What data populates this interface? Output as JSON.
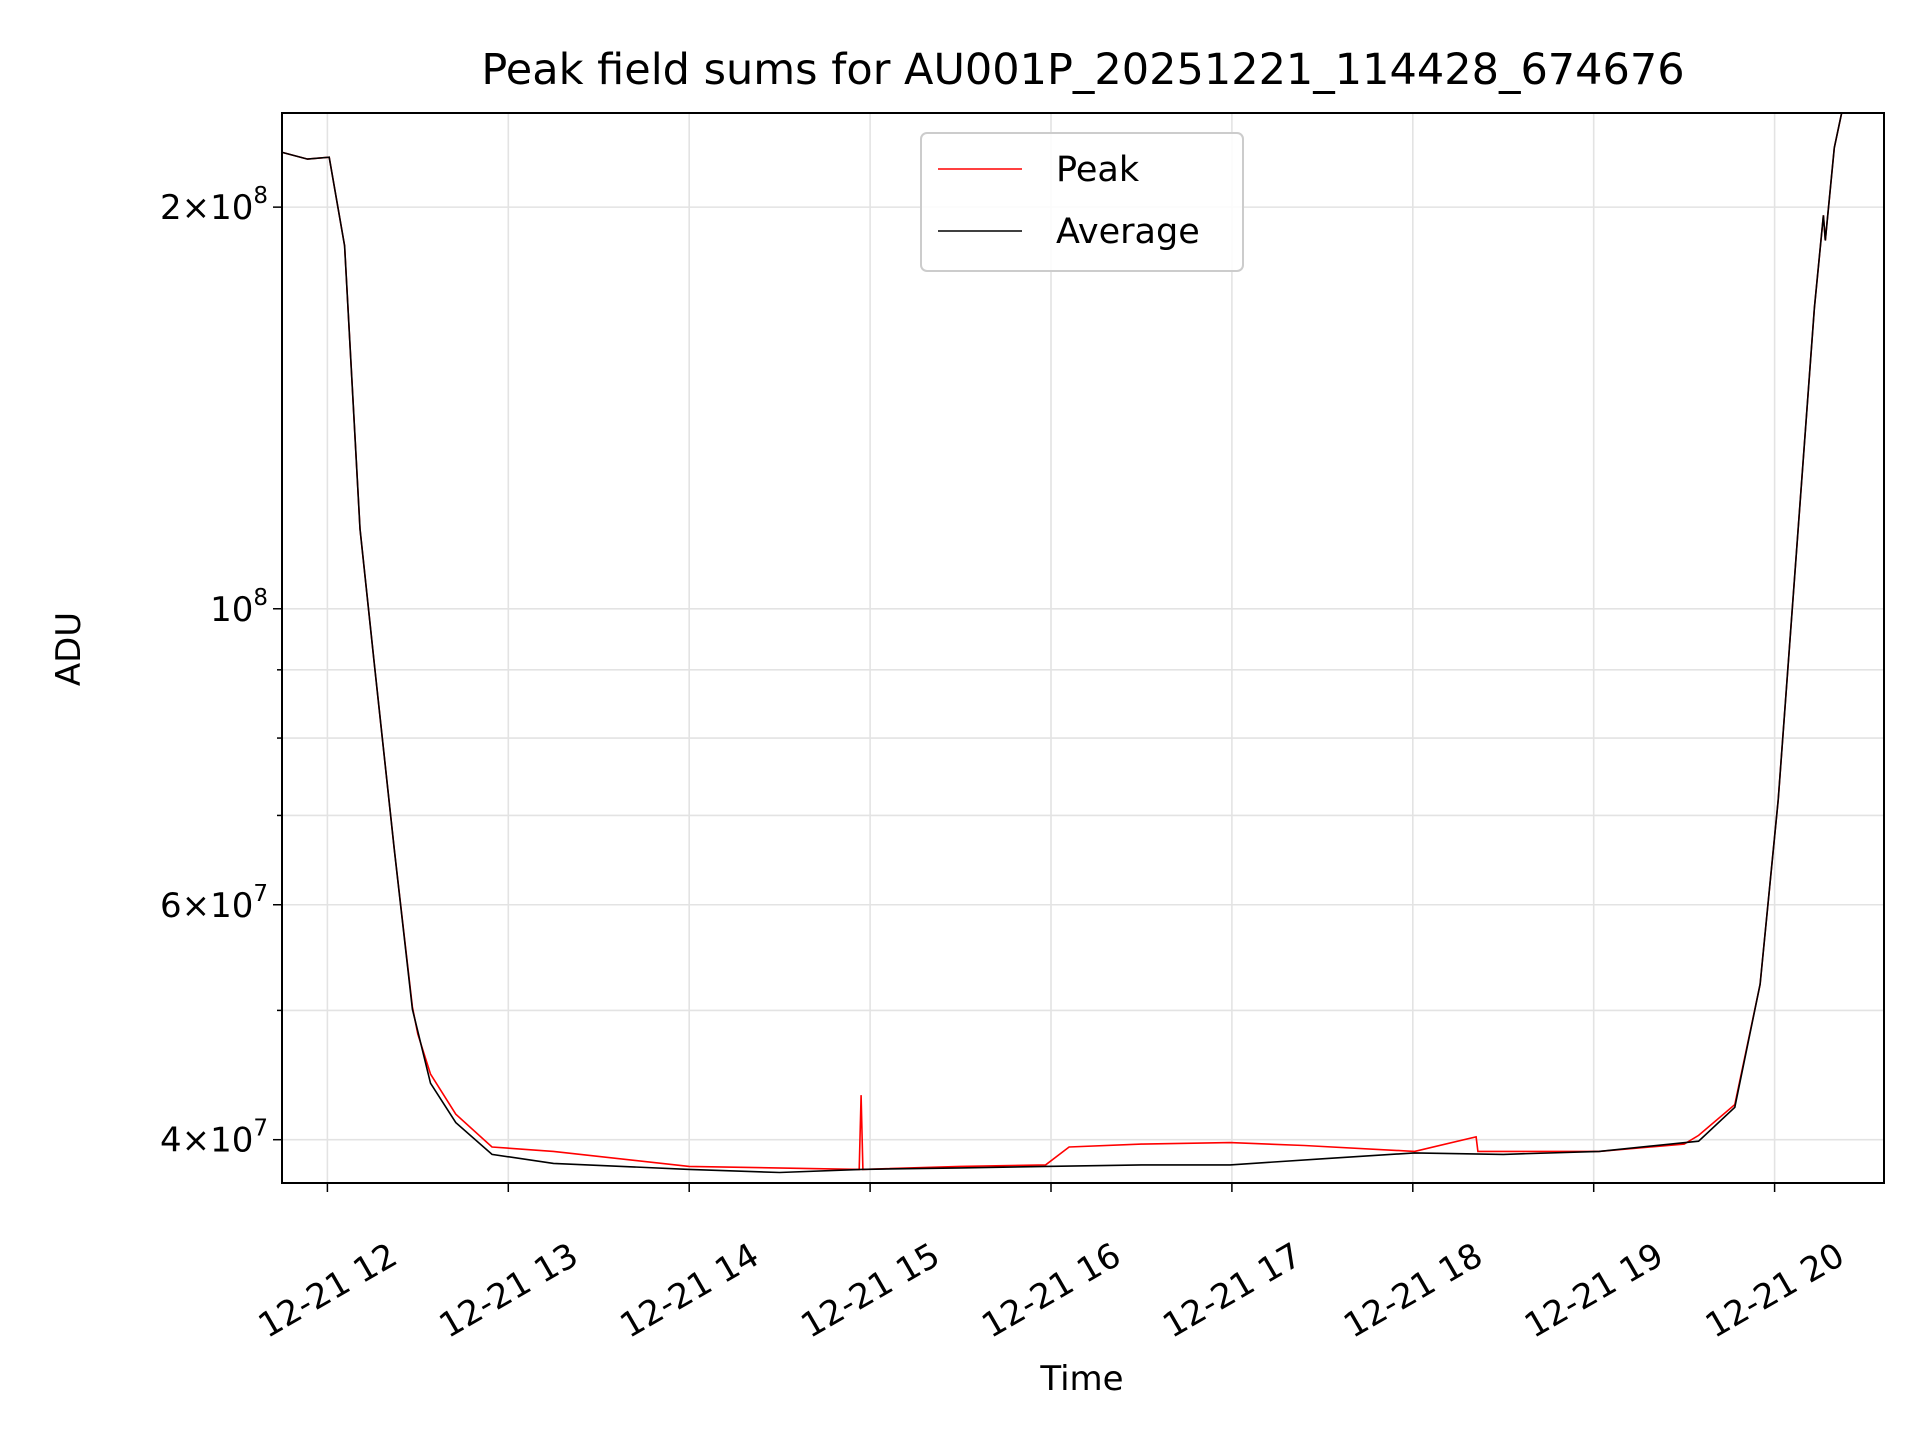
{
  "chart_data": {
    "type": "line",
    "title": "Peak field sums for AU001P_20251221_114428_674676",
    "xlabel": "Time",
    "ylabel": "ADU",
    "yscale": "log",
    "xlim_hours": [
      11.75,
      20.6
    ],
    "ylim": [
      37100000,
      235000000
    ],
    "grid": true,
    "legend_position": "upper center",
    "x_ticks": [
      {
        "h": 12,
        "label": "12-21 12"
      },
      {
        "h": 13,
        "label": "12-21 13"
      },
      {
        "h": 14,
        "label": "12-21 14"
      },
      {
        "h": 15,
        "label": "12-21 15"
      },
      {
        "h": 16,
        "label": "12-21 16"
      },
      {
        "h": 17,
        "label": "12-21 17"
      },
      {
        "h": 18,
        "label": "12-21 18"
      },
      {
        "h": 19,
        "label": "12-21 19"
      },
      {
        "h": 20,
        "label": "12-21 20"
      }
    ],
    "y_ticks": [
      {
        "v": 200000000,
        "mant": "2×10",
        "exp": "8"
      },
      {
        "v": 100000000,
        "mant": "10",
        "exp": "8"
      },
      {
        "v": 60000000,
        "mant": "6×10",
        "exp": "7"
      },
      {
        "v": 40000000,
        "mant": "4×10",
        "exp": "7"
      }
    ],
    "y_minor": [
      50000000,
      70000000,
      80000000,
      90000000
    ],
    "series": [
      {
        "name": "Peak",
        "color": "#ff0000",
        "x": [
          11.75,
          11.89,
          12.01,
          12.095,
          12.18,
          12.26,
          12.37,
          12.47,
          12.5,
          12.57,
          12.71,
          12.91,
          13.25,
          14.0,
          14.94,
          14.95,
          14.96,
          15.5,
          15.97,
          16.1,
          16.5,
          16.99,
          17.4,
          18.01,
          18.35,
          18.36,
          19.03,
          19.5,
          19.58,
          19.78,
          19.92,
          20.02,
          20.12,
          20.22,
          20.27,
          20.28,
          20.33,
          20.37
        ],
        "y": [
          219800000,
          217300000,
          218000000,
          187100000,
          114800000,
          90800000,
          66000000,
          50300000,
          48000000,
          44800000,
          41800000,
          39500000,
          39200000,
          38200000,
          38000000,
          43200000,
          38000000,
          38200000,
          38300000,
          39500000,
          39700000,
          39800000,
          39600000,
          39200000,
          40200000,
          39200000,
          39200000,
          39700000,
          40300000,
          42500000,
          52300000,
          71900000,
          109900000,
          168100000,
          197200000,
          188800000,
          221600000,
          235000000
        ]
      },
      {
        "name": "Average",
        "color": "#000000",
        "x": [
          11.75,
          11.89,
          12.01,
          12.095,
          12.18,
          12.26,
          12.37,
          12.47,
          12.57,
          12.71,
          12.91,
          13.25,
          14.0,
          14.5,
          14.95,
          15.5,
          15.97,
          16.5,
          16.99,
          17.5,
          18.01,
          18.5,
          19.03,
          19.58,
          19.78,
          19.92,
          20.02,
          20.12,
          20.22,
          20.27,
          20.28,
          20.33,
          20.37
        ],
        "y": [
          219800000,
          217300000,
          218000000,
          187100000,
          114800000,
          90800000,
          66000000,
          50100000,
          44100000,
          41200000,
          39000000,
          38400000,
          38000000,
          37800000,
          38000000,
          38100000,
          38200000,
          38300000,
          38300000,
          38700000,
          39100000,
          39000000,
          39200000,
          39900000,
          42300000,
          52300000,
          71900000,
          109900000,
          168100000,
          197200000,
          188800000,
          221600000,
          235000000
        ]
      }
    ]
  }
}
